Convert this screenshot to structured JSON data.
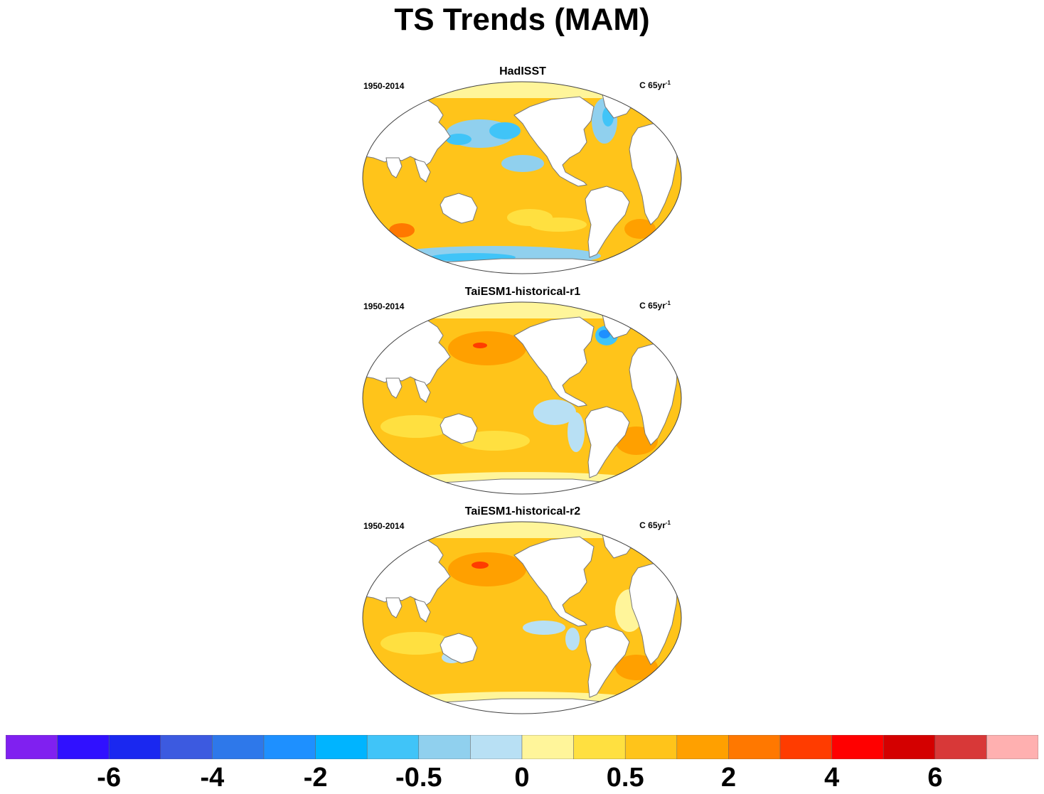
{
  "title": "TS Trends (MAM)",
  "panels": [
    {
      "title": "HadISST",
      "period": "1950-2014",
      "units": "C 65yr",
      "units_exp": "-1"
    },
    {
      "title": "TaiESM1-historical-r1",
      "period": "1950-2014",
      "units": "C 65yr",
      "units_exp": "-1"
    },
    {
      "title": "TaiESM1-historical-r2",
      "period": "1950-2014",
      "units": "C 65yr",
      "units_exp": "-1"
    }
  ],
  "colorbar": {
    "colors": [
      "#8020f0",
      "#3010ff",
      "#1a28f0",
      "#3c5ae0",
      "#2e78ea",
      "#1e90ff",
      "#00b4ff",
      "#40c4f8",
      "#90d0ee",
      "#b8e0f4",
      "#fff59a",
      "#ffe040",
      "#ffc41a",
      "#ffa000",
      "#ff7800",
      "#ff3c00",
      "#ff0000",
      "#d40000",
      "#d83838",
      "#ffb0b0"
    ],
    "labels": [
      {
        "text": "-6",
        "boundary": 2
      },
      {
        "text": "-4",
        "boundary": 4
      },
      {
        "text": "-2",
        "boundary": 6
      },
      {
        "text": "-0.5",
        "boundary": 8
      },
      {
        "text": "0",
        "boundary": 10
      },
      {
        "text": "0.5",
        "boundary": 12
      },
      {
        "text": "2",
        "boundary": 14
      },
      {
        "text": "4",
        "boundary": 16
      },
      {
        "text": "6",
        "boundary": 18
      }
    ]
  }
}
